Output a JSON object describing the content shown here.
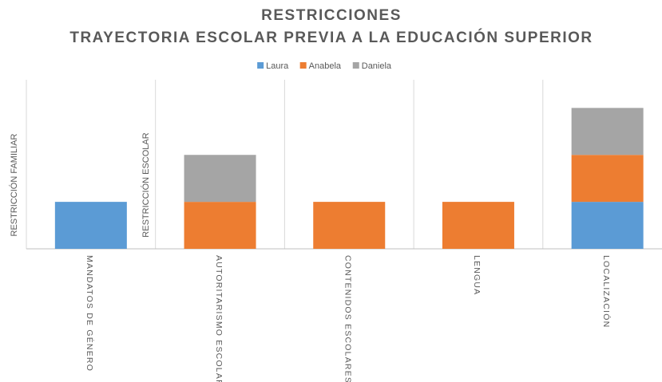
{
  "chart_data": {
    "type": "stacked_bar",
    "title": "RESTRICCIONES",
    "subtitle": "TRAYECTORIA ESCOLAR PREVIA A LA EDUCACIÓN SUPERIOR",
    "annotations": [
      "RESTRICCIÓN FAMILIAR",
      "RESTRICCIÓN ESCOLAR"
    ],
    "categories": [
      "MANDATOS DE GÉNERO",
      "AUTORITARISMO ESCOLAR",
      "CONTENIDOS ESCOLARES",
      "LENGUA",
      "LOCALIZACIÓN"
    ],
    "series": [
      {
        "name": "Laura",
        "color": "#5b9bd5",
        "values": [
          1,
          0,
          0,
          0,
          1
        ]
      },
      {
        "name": "Anabela",
        "color": "#ed7d31",
        "values": [
          0,
          1,
          1,
          1,
          1
        ]
      },
      {
        "name": "Daniela",
        "color": "#a5a5a5",
        "values": [
          0,
          1,
          0,
          0,
          1
        ]
      }
    ],
    "ylim": [
      0,
      3.6
    ],
    "legend": "top"
  }
}
